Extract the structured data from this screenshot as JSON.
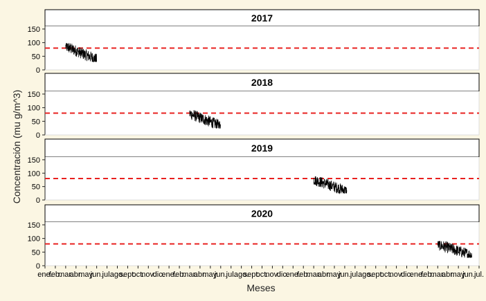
{
  "chart_data": {
    "type": "line",
    "title": "",
    "xlabel": "Meses",
    "ylabel": "Concentración (mu g/m^3)",
    "ylim": [
      0,
      160
    ],
    "yticks": [
      0,
      50,
      100,
      150
    ],
    "reference_line": {
      "y": 80,
      "color": "#e8201f",
      "style": "dashed"
    },
    "x_tick_labels": [
      "ene.",
      "feb.",
      "mar.",
      "abr.",
      "may.",
      "jun.",
      "jul.",
      "ago.",
      "sept.",
      "oct.",
      "nov.",
      "dic.",
      "ene.",
      "feb.",
      "mar.",
      "abr.",
      "may.",
      "jun.",
      "jul.",
      "ago.",
      "sept.",
      "oct.",
      "nov.",
      "dic.",
      "ene.",
      "feb.",
      "mar.",
      "abr.",
      "may.",
      "jun.",
      "jul.",
      "ago.",
      "sept.",
      "oct.",
      "nov.",
      "dic.",
      "ene.",
      "feb.",
      "mar.",
      "abr.",
      "may.",
      "jun.",
      "jul."
    ],
    "xlim_months": [
      0,
      42
    ],
    "grid": false,
    "panels": [
      {
        "label": "2017",
        "x_range_months": [
          2.0,
          5.0
        ],
        "y_min": 30,
        "y_max": 98
      },
      {
        "label": "2018",
        "x_range_months": [
          14.0,
          17.0
        ],
        "y_min": 25,
        "y_max": 90
      },
      {
        "label": "2019",
        "x_range_months": [
          26.0,
          29.2
        ],
        "y_min": 25,
        "y_max": 88
      },
      {
        "label": "2020",
        "x_range_months": [
          38.0,
          41.3
        ],
        "y_min": 30,
        "y_max": 90
      }
    ],
    "series_color": "#000000"
  }
}
